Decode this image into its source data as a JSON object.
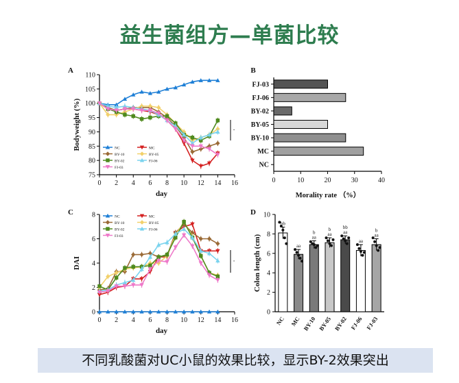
{
  "title": "益生菌组方—单菌比较",
  "caption": "不同乳酸菌对UC小鼠的效果比较，显示BY-2效果突出",
  "colors": {
    "NC": "#1e7fd6",
    "MC": "#d42020",
    "BY-10": "#9a6a36",
    "BY-05": "#f2d06a",
    "BY-02": "#4f8a1e",
    "FJ-06": "#7ad3ee",
    "FJ-03": "#ee79c9"
  },
  "chart_data": [
    {
      "panel": "A",
      "type": "line",
      "xlabel": "day",
      "ylabel": "Bodyweight (%)",
      "xlim": [
        0,
        16
      ],
      "ylim": [
        75,
        110
      ],
      "xticks": [
        0,
        2,
        4,
        6,
        8,
        10,
        12,
        14,
        16
      ],
      "yticks": [
        75,
        80,
        85,
        90,
        95,
        100,
        105,
        110
      ],
      "legend": [
        "NC",
        "MC",
        "BY-10",
        "BY-05",
        "BY-02",
        "FJ-06",
        "FJ-03"
      ],
      "x": [
        0,
        1,
        2,
        3,
        4,
        5,
        6,
        7,
        8,
        9,
        10,
        11,
        12,
        13,
        14
      ],
      "series": [
        {
          "name": "NC",
          "marker": "triangle-up",
          "values": [
            100,
            99.5,
            99.5,
            101.5,
            103,
            104,
            103.5,
            104,
            105,
            105.5,
            106.5,
            107.5,
            108,
            108,
            108
          ]
        },
        {
          "name": "MC",
          "marker": "triangle-down",
          "values": [
            100,
            98,
            97.5,
            98,
            98,
            97.5,
            97,
            96,
            94,
            91,
            86,
            80,
            78,
            79,
            82.5
          ]
        },
        {
          "name": "BY-10",
          "marker": "diamond",
          "values": [
            100,
            98.5,
            97.5,
            98,
            98.5,
            98.5,
            98.5,
            97,
            95,
            92,
            88,
            83,
            84,
            85,
            86
          ]
        },
        {
          "name": "BY-05",
          "marker": "diamond",
          "values": [
            100,
            96,
            96,
            97,
            98,
            99,
            99,
            98.5,
            96,
            93,
            90,
            87,
            88,
            89,
            91
          ]
        },
        {
          "name": "BY-02",
          "marker": "square",
          "values": [
            100,
            98,
            97,
            96,
            95.5,
            94.5,
            95,
            95.5,
            95.5,
            93,
            89,
            88,
            87,
            88.5,
            94
          ]
        },
        {
          "name": "FJ-06",
          "marker": "triangle-up",
          "values": [
            100,
            99,
            98.5,
            99,
            98.5,
            98,
            97.5,
            96,
            94,
            92,
            89,
            86,
            88,
            89,
            90
          ]
        },
        {
          "name": "FJ-03",
          "marker": "triangle-down",
          "values": [
            100,
            98,
            97.5,
            98,
            98,
            97.5,
            97.5,
            96.5,
            94,
            91,
            87,
            85,
            85,
            84,
            82
          ]
        }
      ]
    },
    {
      "panel": "B",
      "type": "bar",
      "orientation": "horizontal",
      "xlabel": "Morality rate （%）",
      "xlim": [
        0,
        40
      ],
      "xticks": [
        0,
        10,
        20,
        30,
        40
      ],
      "categories": [
        "FJ-03",
        "FJ-06",
        "BY-02",
        "BY-05",
        "BY-10",
        "MC",
        "NC"
      ],
      "values": [
        20,
        26.7,
        6.7,
        20,
        26.7,
        33.3,
        0
      ],
      "bar_colors": [
        "#555555",
        "#a8a8a8",
        "#6a6a6a",
        "#d8d8d8",
        "#8f8f8f",
        "#a0a0a0",
        "#ffffff"
      ]
    },
    {
      "panel": "C",
      "type": "line",
      "xlabel": "day",
      "ylabel": "DAI",
      "xlim": [
        0,
        16
      ],
      "ylim": [
        0,
        8
      ],
      "xticks": [
        0,
        2,
        4,
        6,
        8,
        10,
        12,
        14,
        16
      ],
      "yticks": [
        0,
        2,
        4,
        6,
        8
      ],
      "legend": [
        "NC",
        "MC",
        "BY-10",
        "BY-05",
        "BY-02",
        "FJ-06",
        "FJ-03"
      ],
      "x": [
        0,
        1,
        2,
        3,
        4,
        5,
        6,
        7,
        8,
        9,
        10,
        11,
        12,
        13,
        14
      ],
      "series": [
        {
          "name": "NC",
          "marker": "triangle-up",
          "values": [
            0,
            0,
            0,
            0,
            0,
            0,
            0,
            0,
            0,
            0,
            0,
            0,
            0,
            0,
            0
          ]
        },
        {
          "name": "MC",
          "marker": "triangle-down",
          "values": [
            1.4,
            1.6,
            2.0,
            2.1,
            2.7,
            2.7,
            3.3,
            4.5,
            4.5,
            6.5,
            7.0,
            7.2,
            5.0,
            5.0,
            5.0
          ]
        },
        {
          "name": "BY-10",
          "marker": "diamond",
          "values": [
            1.8,
            1.9,
            3.3,
            3.3,
            4.7,
            4.7,
            4.8,
            4.5,
            4.6,
            6.5,
            7.2,
            6.5,
            6.0,
            6.0,
            5.6
          ]
        },
        {
          "name": "BY-05",
          "marker": "diamond",
          "values": [
            2.0,
            2.9,
            3.2,
            3.5,
            3.6,
            3.7,
            4.0,
            4.0,
            4.6,
            6.3,
            7.4,
            6.2,
            4.6,
            3.2,
            3.0
          ]
        },
        {
          "name": "BY-02",
          "marker": "square",
          "values": [
            2.1,
            1.8,
            2.8,
            3.6,
            3.7,
            3.7,
            3.8,
            4.5,
            4.7,
            6.1,
            7.4,
            6.1,
            4.6,
            3.2,
            2.9
          ]
        },
        {
          "name": "FJ-06",
          "marker": "triangle-up",
          "values": [
            1.7,
            1.8,
            2.2,
            2.4,
            2.6,
            3.5,
            4.5,
            5.5,
            5.7,
            6.4,
            6.8,
            6.1,
            5.0,
            4.8,
            4.2
          ]
        },
        {
          "name": "FJ-03",
          "marker": "triangle-down",
          "values": [
            1.6,
            1.7,
            2.1,
            2.1,
            2.2,
            2.2,
            3.5,
            4.2,
            4.1,
            5.3,
            6.3,
            5.4,
            4.0,
            3.0,
            2.6
          ]
        }
      ]
    },
    {
      "panel": "D",
      "type": "bar",
      "ylabel": "Colon length (cm)",
      "ylim": [
        0,
        10
      ],
      "yticks": [
        0,
        2,
        4,
        6,
        8,
        10
      ],
      "categories": [
        "NC",
        "MC",
        "BY-10",
        "BY-05",
        "BY-02",
        "FJ-06",
        "FJ-03"
      ],
      "values": [
        8.1,
        5.9,
        6.9,
        7.1,
        7.4,
        6.3,
        6.9
      ],
      "errors": [
        0.6,
        0.5,
        0.4,
        0.5,
        0.4,
        0.6,
        0.6
      ],
      "bar_colors": [
        "#ffffff",
        "#8a8a8a",
        "#7a7a7a",
        "#c8c8c8",
        "#4a4a4a",
        "#ffffff",
        "#a6a6a6"
      ],
      "significance": [
        {
          "top": "bb",
          "bottom": ""
        },
        {
          "top": "aa",
          "bottom": ""
        },
        {
          "top": "b",
          "bottom": "aa"
        },
        {
          "top": "b",
          "bottom": "aa"
        },
        {
          "top": "bb",
          "bottom": "aa"
        },
        {
          "top": "aa",
          "bottom": ""
        },
        {
          "top": "b",
          "bottom": "aa"
        }
      ],
      "points": [
        [
          9.2,
          8.8,
          8.4,
          7.6,
          7.0
        ],
        [
          6.4,
          6.1,
          5.8,
          5.5,
          5.2
        ],
        [
          7.2,
          7.0,
          6.9,
          6.6,
          6.8
        ],
        [
          7.6,
          7.3,
          7.0,
          6.8,
          7.4
        ],
        [
          7.8,
          7.5,
          7.3,
          7.0,
          7.6
        ],
        [
          6.9,
          6.5,
          6.2,
          5.8,
          6.1
        ],
        [
          7.6,
          7.2,
          6.8,
          6.3,
          6.6
        ]
      ]
    }
  ]
}
